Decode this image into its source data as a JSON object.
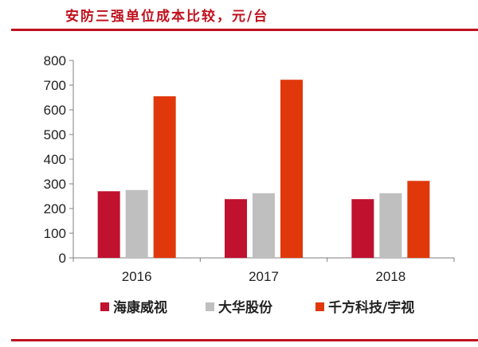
{
  "title": "安防三强单位成本比较，元/台",
  "chart_data": {
    "type": "bar",
    "title": "安防三强单位成本比较，元/台",
    "xlabel": "",
    "ylabel": "",
    "categories": [
      "2016",
      "2017",
      "2018"
    ],
    "ylim": [
      0,
      800
    ],
    "yticks": [
      0,
      100,
      200,
      300,
      400,
      500,
      600,
      700,
      800
    ],
    "grid": false,
    "legend_position": "bottom",
    "series": [
      {
        "name": "海康威视",
        "color": "#c0112f",
        "values": [
          270,
          238,
          238
        ]
      },
      {
        "name": "大华股份",
        "color": "#bfbfbf",
        "values": [
          275,
          262,
          262
        ]
      },
      {
        "name": "千方科技/宇视",
        "color": "#e0380a",
        "values": [
          655,
          722,
          312
        ]
      }
    ]
  }
}
